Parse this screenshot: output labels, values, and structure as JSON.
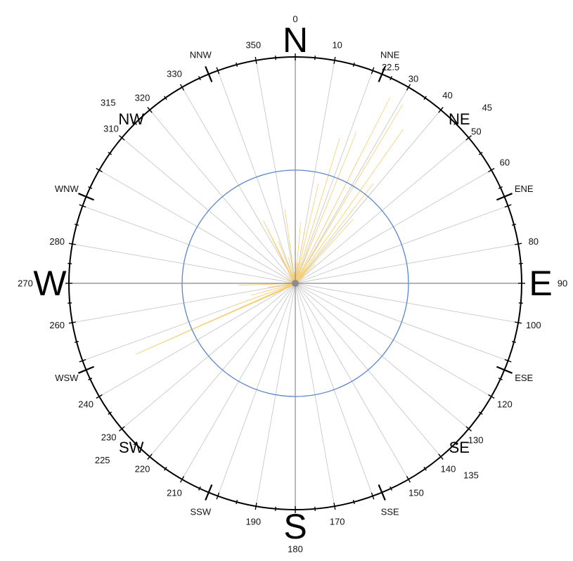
{
  "chart_data": {
    "type": "polar-area",
    "title": "",
    "angle_unit": "degrees",
    "radial_max": 1.0,
    "reference_ring": 0.5,
    "cardinal_labels": [
      {
        "text": "N",
        "angle": 0
      },
      {
        "text": "E",
        "angle": 90
      },
      {
        "text": "S",
        "angle": 180
      },
      {
        "text": "W",
        "angle": 270
      }
    ],
    "inter_labels": [
      {
        "text": "NE",
        "angle": 45
      },
      {
        "text": "SE",
        "angle": 135
      },
      {
        "text": "SW",
        "angle": 225
      },
      {
        "text": "NW",
        "angle": 315
      }
    ],
    "secondary_labels": [
      {
        "text": "NNE",
        "angle": 22.5
      },
      {
        "text": "ENE",
        "angle": 67.5
      },
      {
        "text": "ESE",
        "angle": 112.5
      },
      {
        "text": "SSE",
        "angle": 157.5
      },
      {
        "text": "SSW",
        "angle": 202.5
      },
      {
        "text": "WSW",
        "angle": 247.5
      },
      {
        "text": "WNW",
        "angle": 292.5
      },
      {
        "text": "NNW",
        "angle": 337.5
      }
    ],
    "degree_labels": [
      {
        "text": "0",
        "angle": 0
      },
      {
        "text": "10",
        "angle": 10
      },
      {
        "text": "22.5",
        "angle": 22.5
      },
      {
        "text": "30",
        "angle": 30
      },
      {
        "text": "40",
        "angle": 40
      },
      {
        "text": "45",
        "angle": 45
      },
      {
        "text": "50",
        "angle": 50
      },
      {
        "text": "60",
        "angle": 60
      },
      {
        "text": "80",
        "angle": 80
      },
      {
        "text": "90",
        "angle": 90
      },
      {
        "text": "100",
        "angle": 100
      },
      {
        "text": "120",
        "angle": 120
      },
      {
        "text": "130",
        "angle": 130
      },
      {
        "text": "135",
        "angle": 135
      },
      {
        "text": "140",
        "angle": 140
      },
      {
        "text": "150",
        "angle": 150
      },
      {
        "text": "170",
        "angle": 170
      },
      {
        "text": "180",
        "angle": 180
      },
      {
        "text": "190",
        "angle": 190
      },
      {
        "text": "210",
        "angle": 210
      },
      {
        "text": "220",
        "angle": 220
      },
      {
        "text": "225",
        "angle": 225
      },
      {
        "text": "230",
        "angle": 230
      },
      {
        "text": "240",
        "angle": 240
      },
      {
        "text": "260",
        "angle": 260
      },
      {
        "text": "270",
        "angle": 270
      },
      {
        "text": "280",
        "angle": 280
      },
      {
        "text": "310",
        "angle": 310
      },
      {
        "text": "315",
        "angle": 315
      },
      {
        "text": "320",
        "angle": 320
      },
      {
        "text": "330",
        "angle": 330
      },
      {
        "text": "350",
        "angle": 350
      }
    ],
    "series": [
      {
        "color": "#f5cf78",
        "points": [
          {
            "angle": 357,
            "r": 0.03
          },
          {
            "angle": 2,
            "r": 0.09
          },
          {
            "angle": 5,
            "r": 0.27
          },
          {
            "angle": 8,
            "r": 0.09
          },
          {
            "angle": 10,
            "r": 0.23
          },
          {
            "angle": 13,
            "r": 0.45
          },
          {
            "angle": 17,
            "r": 0.67
          },
          {
            "angle": 22,
            "r": 0.72
          },
          {
            "angle": 27,
            "r": 0.92
          },
          {
            "angle": 31,
            "r": 0.92
          },
          {
            "angle": 35,
            "r": 0.83
          },
          {
            "angle": 38,
            "r": 0.56
          },
          {
            "angle": 42,
            "r": 0.38
          },
          {
            "angle": 46,
            "r": 0.12
          },
          {
            "angle": 52,
            "r": 0.05
          },
          {
            "angle": 100,
            "r": 0.02
          },
          {
            "angle": 250,
            "r": 0.3
          },
          {
            "angle": 246,
            "r": 0.77
          },
          {
            "angle": 255,
            "r": 0.2
          },
          {
            "angle": 262,
            "r": 0.12
          },
          {
            "angle": 268,
            "r": 0.25
          },
          {
            "angle": 272,
            "r": 0.05
          },
          {
            "angle": 300,
            "r": 0.06
          },
          {
            "angle": 333,
            "r": 0.31
          },
          {
            "angle": 338,
            "r": 0.2
          },
          {
            "angle": 345,
            "r": 0.12
          },
          {
            "angle": 352,
            "r": 0.33
          },
          {
            "angle": 355,
            "r": 0.05
          }
        ]
      }
    ]
  }
}
